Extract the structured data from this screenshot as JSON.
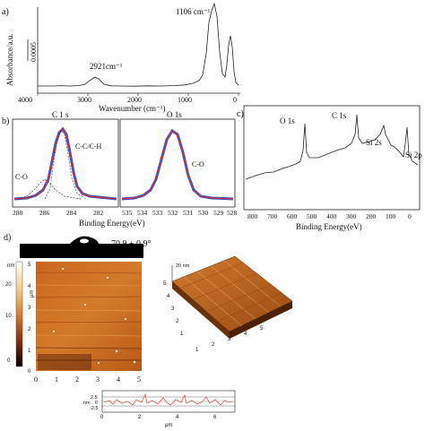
{
  "panels": {
    "a": {
      "label": "a)",
      "ylabel": "Absorbance/a.u.",
      "scale_bar": "0.0005",
      "xlabel": "Wavenumber (cm⁻¹)",
      "xticks": [
        "4000",
        "3000",
        "2000",
        "1000",
        "0"
      ],
      "peak1": "2921cm⁻¹",
      "peak2": "1106 cm⁻¹"
    },
    "b": {
      "label": "b)",
      "c1s_title": "C 1 s",
      "o1s_title": "O 1s",
      "c1s_xticks": [
        "288",
        "286",
        "284",
        "282"
      ],
      "o1s_xticks": [
        "535",
        "534",
        "533",
        "532",
        "531",
        "530",
        "529",
        "528"
      ],
      "peak_cc": "C-C/C-H",
      "peak_co_c": "C-O",
      "peak_co_o": "C-O",
      "xlabel": "Binding Energy(eV)"
    },
    "c": {
      "label": "c)",
      "o1s": "O 1s",
      "c1s": "C 1s",
      "si2s": "Si 2s",
      "si2p": "Si 2p",
      "xticks": [
        "800",
        "700",
        "600",
        "500",
        "400",
        "300",
        "200",
        "100",
        "0"
      ],
      "xlabel": "Binding Energy(eV)"
    },
    "d": {
      "label": "d)",
      "contact_angle": "70.9 ± 0.9°",
      "colorbar_unit": "nm",
      "colorbar_ticks": [
        "20",
        "10",
        "0"
      ],
      "afm_xticks": [
        "0",
        "1",
        "2",
        "3",
        "4",
        "5"
      ],
      "afm_yticks": [
        "5",
        "4",
        "3",
        "2",
        "1",
        "0"
      ],
      "afm_axis_unit": "μm",
      "afm3d_zlabel": "20 nm",
      "afm3d_yticks": [
        "5",
        "4",
        "3",
        "2",
        "1"
      ],
      "afm3d_xticks": [
        "1",
        "2",
        "3",
        "4",
        "5"
      ],
      "profile_yticks": [
        "2.5",
        "0",
        "-2.5"
      ],
      "profile_ylabel": "nm",
      "profile_xticks": [
        "0",
        "2",
        "4",
        "6"
      ],
      "profile_xlabel": "μm"
    }
  }
}
